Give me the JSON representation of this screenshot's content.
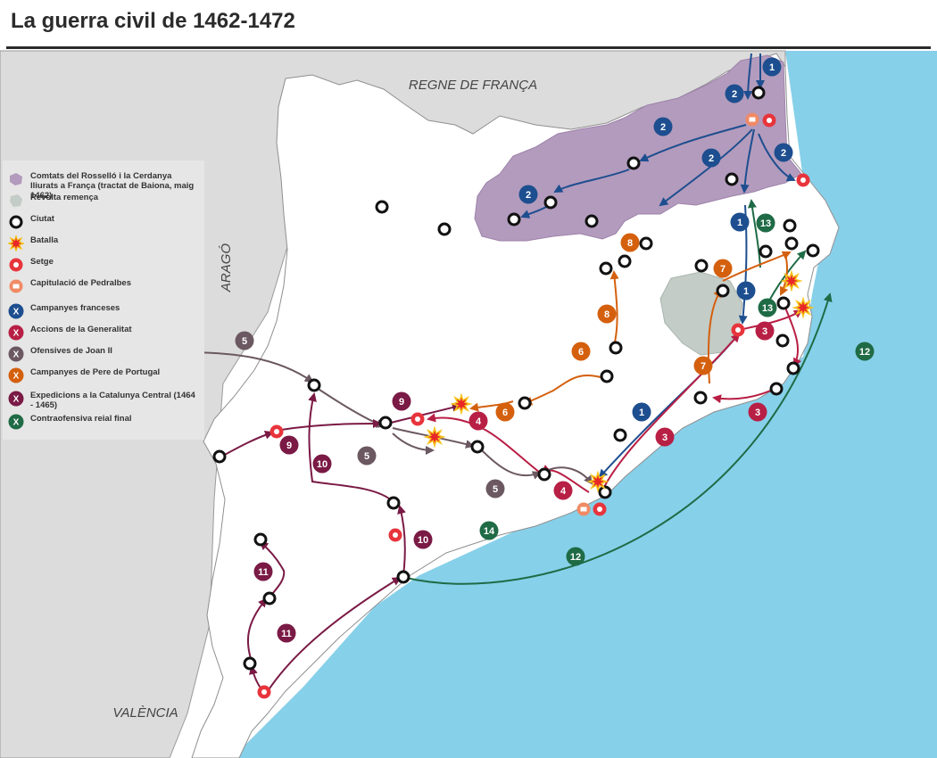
{
  "title": "La guerra civil de 1462-1472",
  "regions": {
    "france": "REGNE DE FRANÇA",
    "aragon": "ARAGÓ",
    "valencia": "VALÈNCIA"
  },
  "legend": [
    {
      "symbol": "rossello-patch",
      "label": "Comtats del Rosselló i la Cerdanya lliurats a França (tractat de Baiona, maig 1462)"
    },
    {
      "symbol": "remenca-patch",
      "label": "Revolta remença"
    },
    {
      "symbol": "city",
      "label": "Ciutat"
    },
    {
      "symbol": "battle",
      "label": "Batalla"
    },
    {
      "symbol": "siege",
      "label": "Setge"
    },
    {
      "symbol": "capitulation",
      "label": "Capitulació de Pedralbes"
    },
    {
      "symbol": "campaign",
      "color": "#1d4e8f",
      "label": "Campanyes franceses"
    },
    {
      "symbol": "campaign",
      "color": "#b81f45",
      "label": "Accions de la Generalitat"
    },
    {
      "symbol": "campaign",
      "color": "#6b5861",
      "label": "Ofensives de Joan II"
    },
    {
      "symbol": "campaign",
      "color": "#d4600e",
      "label": "Campanyes de Pere de Portugal"
    },
    {
      "symbol": "campaign",
      "color": "#7a1a45",
      "label": "Expedicions a la Catalunya Central (1464 - 1465)"
    },
    {
      "symbol": "campaign",
      "color": "#1f6b46",
      "label": "Contraofensiva reial final"
    }
  ],
  "legend_mark": "X",
  "colors": {
    "sea": "#87d0ea",
    "land": "#ffffff",
    "neighbor": "#dcdcdc",
    "rossello": "#b39bbd",
    "remenca": "#c3ccc7",
    "city": "#111111",
    "siege": "#e8343c",
    "capitulation": "#f08a64"
  },
  "route_labels": [
    {
      "n": "1",
      "group": 0
    },
    {
      "n": "2",
      "group": 0
    },
    {
      "n": "2",
      "group": 0
    },
    {
      "n": "2",
      "group": 0
    },
    {
      "n": "2",
      "group": 0
    },
    {
      "n": "2",
      "group": 0
    },
    {
      "n": "1",
      "group": 0
    },
    {
      "n": "1",
      "group": 0
    },
    {
      "n": "1",
      "group": 0
    },
    {
      "n": "13",
      "group": 5
    },
    {
      "n": "13",
      "group": 5
    },
    {
      "n": "7",
      "group": 3
    },
    {
      "n": "7",
      "group": 3
    },
    {
      "n": "8",
      "group": 3
    },
    {
      "n": "8",
      "group": 3
    },
    {
      "n": "6",
      "group": 3
    },
    {
      "n": "6",
      "group": 3
    },
    {
      "n": "3",
      "group": 1
    },
    {
      "n": "3",
      "group": 1
    },
    {
      "n": "3",
      "group": 1
    },
    {
      "n": "4",
      "group": 1
    },
    {
      "n": "4",
      "group": 1
    },
    {
      "n": "5",
      "group": 2
    },
    {
      "n": "5",
      "group": 2
    },
    {
      "n": "5",
      "group": 2
    },
    {
      "n": "9",
      "group": 4
    },
    {
      "n": "9",
      "group": 4
    },
    {
      "n": "10",
      "group": 4
    },
    {
      "n": "10",
      "group": 4
    },
    {
      "n": "11",
      "group": 4
    },
    {
      "n": "11",
      "group": 4
    },
    {
      "n": "12",
      "group": 5
    },
    {
      "n": "12",
      "group": 5
    },
    {
      "n": "14",
      "group": 5
    }
  ]
}
